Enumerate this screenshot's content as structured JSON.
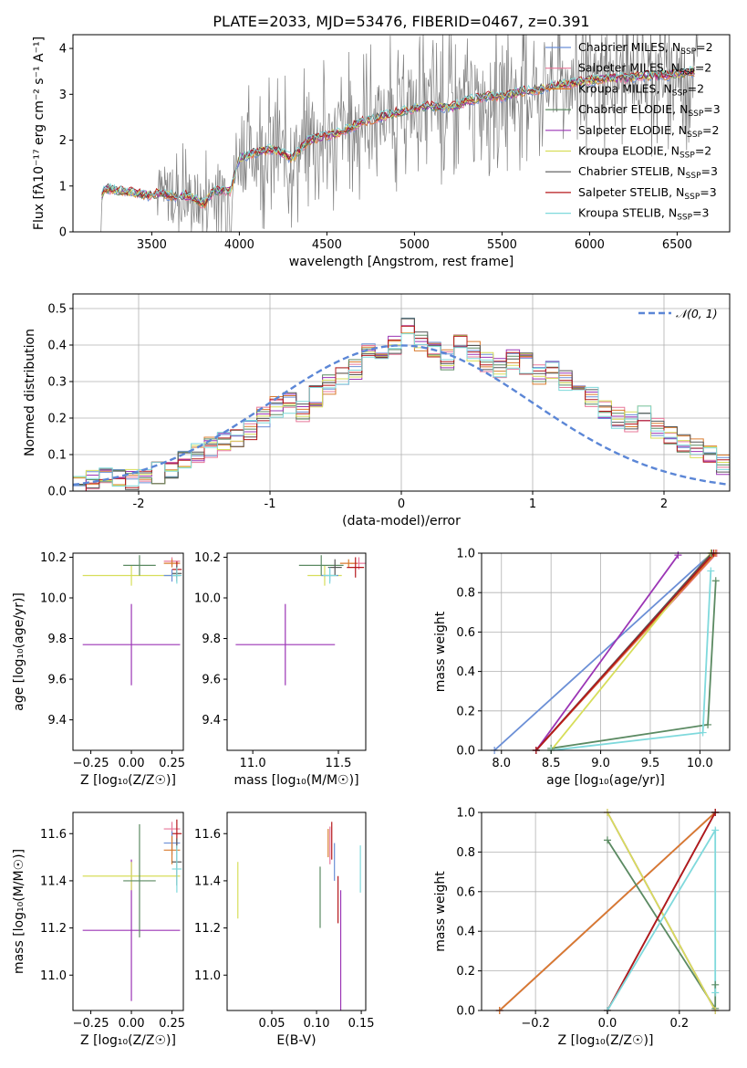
{
  "figure": {
    "title": "PLATE=2033, MJD=53476, FIBERID=0467, z=0.391"
  },
  "colors": {
    "Chabrier MILES": "#6b8fd6",
    "Salpeter MILES": "#e8789a",
    "Kroupa MILES": "#d97b2e",
    "Chabrier ELODIE": "#5b8a62",
    "Salpeter ELODIE": "#9b35b5",
    "Kroupa ELODIE": "#d7de5a",
    "Chabrier STELIB": "#555555",
    "Salpeter STELIB": "#b5181c",
    "Kroupa STELIB": "#7fd9dc",
    "data": "#7f7f7f",
    "normal": "#5b86d6"
  },
  "legend_spectrum": [
    {
      "label": "Chabrier MILES, N",
      "sub": "SSP",
      "suffix": "=2",
      "key": "Chabrier MILES"
    },
    {
      "label": "Salpeter MILES, N",
      "sub": "SSP",
      "suffix": "=2",
      "key": "Salpeter MILES"
    },
    {
      "label": "Kroupa MILES, N",
      "sub": "SSP",
      "suffix": "=2",
      "key": "Kroupa MILES"
    },
    {
      "label": "Chabrier ELODIE, N",
      "sub": "SSP",
      "suffix": "=3",
      "key": "Chabrier ELODIE"
    },
    {
      "label": "Salpeter ELODIE, N",
      "sub": "SSP",
      "suffix": "=2",
      "key": "Salpeter ELODIE"
    },
    {
      "label": "Kroupa ELODIE, N",
      "sub": "SSP",
      "suffix": "=2",
      "key": "Kroupa ELODIE"
    },
    {
      "label": "Chabrier STELIB, N",
      "sub": "SSP",
      "suffix": "=3",
      "key": "Chabrier STELIB"
    },
    {
      "label": "Salpeter STELIB, N",
      "sub": "SSP",
      "suffix": "=3",
      "key": "Salpeter STELIB"
    },
    {
      "label": "Kroupa STELIB, N",
      "sub": "SSP",
      "suffix": "=3",
      "key": "Kroupa STELIB"
    }
  ],
  "chart_data": [
    {
      "id": "spectrum",
      "type": "line",
      "xlabel": "wavelength [Angstrom, rest frame]",
      "ylabel": "Flux [fλ10⁻¹⁷ erg cm⁻² s⁻¹ A⁻¹]",
      "xlim": [
        3050,
        6800
      ],
      "ylim": [
        0,
        4.3
      ],
      "xticks": [
        3500,
        4000,
        4500,
        5000,
        5500,
        6000,
        6500
      ],
      "yticks": [
        0,
        1,
        2,
        3,
        4
      ],
      "model_continuum": [
        [
          3210,
          0.0
        ],
        [
          3215,
          0.8
        ],
        [
          3240,
          0.95
        ],
        [
          3300,
          0.9
        ],
        [
          3400,
          0.85
        ],
        [
          3480,
          0.8
        ],
        [
          3550,
          0.85
        ],
        [
          3650,
          0.75
        ],
        [
          3700,
          0.8
        ],
        [
          3800,
          0.6
        ],
        [
          3850,
          0.9
        ],
        [
          3950,
          0.9
        ],
        [
          4000,
          1.6
        ],
        [
          4100,
          1.75
        ],
        [
          4200,
          1.8
        ],
        [
          4300,
          1.6
        ],
        [
          4400,
          2.0
        ],
        [
          4500,
          2.1
        ],
        [
          4600,
          2.2
        ],
        [
          4700,
          2.4
        ],
        [
          4800,
          2.5
        ],
        [
          4900,
          2.6
        ],
        [
          5000,
          2.7
        ],
        [
          5100,
          2.75
        ],
        [
          5200,
          2.7
        ],
        [
          5300,
          2.85
        ],
        [
          5400,
          2.95
        ],
        [
          5500,
          2.95
        ],
        [
          5600,
          3.05
        ],
        [
          5700,
          3.1
        ],
        [
          5800,
          3.2
        ],
        [
          5900,
          3.25
        ],
        [
          6000,
          3.3
        ],
        [
          6100,
          3.35
        ],
        [
          6200,
          3.35
        ],
        [
          6300,
          3.4
        ],
        [
          6400,
          3.4
        ],
        [
          6500,
          3.45
        ],
        [
          6600,
          3.5
        ]
      ]
    },
    {
      "id": "residuals",
      "type": "line",
      "xlabel": "(data-model)/error",
      "ylabel": "Normed distribution",
      "xlim": [
        -2.5,
        2.5
      ],
      "ylim": [
        0,
        0.54
      ],
      "xticks": [
        -2,
        -1,
        0,
        1,
        2
      ],
      "yticks": [
        0.0,
        0.1,
        0.2,
        0.3,
        0.4,
        0.5
      ],
      "legend": "𝒩(0, 1)",
      "bin_edges": [
        -2.5,
        -2.4,
        -2.3,
        -2.2,
        -2.1,
        -2.0,
        -1.9,
        -1.8,
        -1.7,
        -1.6,
        -1.5,
        -1.4,
        -1.3,
        -1.2,
        -1.1,
        -1.0,
        -0.9,
        -0.8,
        -0.7,
        -0.6,
        -0.5,
        -0.4,
        -0.3,
        -0.2,
        -0.1,
        0.0,
        0.1,
        0.2,
        0.3,
        0.4,
        0.5,
        0.6,
        0.7,
        0.8,
        0.9,
        1.0,
        1.1,
        1.2,
        1.3,
        1.4,
        1.5,
        1.6,
        1.7,
        1.8,
        1.9,
        2.0,
        2.1,
        2.2,
        2.3,
        2.4,
        2.5
      ],
      "histogram": [
        0.02,
        0.03,
        0.05,
        0.04,
        0.03,
        0.03,
        0.05,
        0.06,
        0.08,
        0.1,
        0.12,
        0.14,
        0.15,
        0.17,
        0.2,
        0.23,
        0.24,
        0.22,
        0.26,
        0.29,
        0.31,
        0.33,
        0.38,
        0.36,
        0.4,
        0.45,
        0.41,
        0.38,
        0.36,
        0.42,
        0.38,
        0.35,
        0.34,
        0.36,
        0.35,
        0.32,
        0.33,
        0.3,
        0.27,
        0.26,
        0.22,
        0.2,
        0.19,
        0.21,
        0.17,
        0.15,
        0.13,
        0.12,
        0.1,
        0.07
      ]
    },
    {
      "id": "Z_age",
      "type": "scatter",
      "xlabel": "Z [log₁₀(Z/Z☉)]",
      "ylabel": "age  [log₁₀(age/yr)]",
      "xlim": [
        -0.36,
        0.32
      ],
      "ylim": [
        9.25,
        10.22
      ],
      "xticks": [
        -0.25,
        0.0,
        0.25
      ],
      "xticklabels": [
        "−0.25",
        "0.00",
        "0.25"
      ],
      "yticks": [
        9.4,
        9.6,
        9.8,
        10.0,
        10.2
      ],
      "points": [
        {
          "key": "Salpeter ELODIE",
          "x": 0.0,
          "xerr": 0.3,
          "y": 9.77,
          "yerr": 0.2
        },
        {
          "key": "Kroupa ELODIE",
          "x": 0.0,
          "xerr": 0.3,
          "y": 10.11,
          "yerr": 0.05
        },
        {
          "key": "Chabrier ELODIE",
          "x": 0.05,
          "xerr": 0.1,
          "y": 10.16,
          "yerr": 0.05
        },
        {
          "key": "Salpeter MILES",
          "x": 0.25,
          "xerr": 0.05,
          "y": 10.18,
          "yerr": 0.02
        },
        {
          "key": "Kroupa MILES",
          "x": 0.25,
          "xerr": 0.05,
          "y": 10.17,
          "yerr": 0.02
        },
        {
          "key": "Salpeter STELIB",
          "x": 0.28,
          "xerr": 0.03,
          "y": 10.14,
          "yerr": 0.04
        },
        {
          "key": "Chabrier STELIB",
          "x": 0.28,
          "xerr": 0.03,
          "y": 10.12,
          "yerr": 0.04
        },
        {
          "key": "Chabrier MILES",
          "x": 0.25,
          "xerr": 0.05,
          "y": 10.11,
          "yerr": 0.03
        },
        {
          "key": "Kroupa STELIB",
          "x": 0.28,
          "xerr": 0.03,
          "y": 10.11,
          "yerr": 0.04
        }
      ]
    },
    {
      "id": "mass_age",
      "type": "scatter",
      "xlabel": "mass [log₁₀(M/M☉)]",
      "ylabel": "",
      "xlim": [
        10.85,
        11.66
      ],
      "ylim": [
        9.25,
        10.22
      ],
      "xticks": [
        11.0,
        11.5
      ],
      "xticklabels": [
        "11.0",
        "11.5"
      ],
      "yticks": [
        9.4,
        9.6,
        9.8,
        10.0,
        10.2
      ],
      "points": [
        {
          "key": "Salpeter ELODIE",
          "x": 11.19,
          "xerr": 0.29,
          "y": 9.77,
          "yerr": 0.2
        },
        {
          "key": "Kroupa ELODIE",
          "x": 11.42,
          "xerr": 0.1,
          "y": 10.11,
          "yerr": 0.05
        },
        {
          "key": "Chabrier ELODIE",
          "x": 11.4,
          "xerr": 0.13,
          "y": 10.16,
          "yerr": 0.05
        },
        {
          "key": "Salpeter MILES",
          "x": 11.62,
          "xerr": 0.05,
          "y": 10.17,
          "yerr": 0.03
        },
        {
          "key": "Kroupa MILES",
          "x": 11.56,
          "xerr": 0.05,
          "y": 10.17,
          "yerr": 0.02
        },
        {
          "key": "Salpeter STELIB",
          "x": 11.6,
          "xerr": 0.05,
          "y": 10.15,
          "yerr": 0.05
        },
        {
          "key": "Chabrier STELIB",
          "x": 11.48,
          "xerr": 0.04,
          "y": 10.15,
          "yerr": 0.04
        },
        {
          "key": "Chabrier MILES",
          "x": 11.45,
          "xerr": 0.05,
          "y": 10.11,
          "yerr": 0.03
        },
        {
          "key": "Kroupa STELIB",
          "x": 11.45,
          "xerr": 0.04,
          "y": 10.11,
          "yerr": 0.04
        }
      ]
    },
    {
      "id": "age_weight",
      "type": "line",
      "xlabel": "age  [log₁₀(age/yr)]",
      "ylabel": "mass weight",
      "xlim": [
        7.8,
        10.3
      ],
      "ylim": [
        0,
        1
      ],
      "xticks": [
        8.0,
        8.5,
        9.0,
        9.5,
        10.0
      ],
      "yticks": [
        0.0,
        0.2,
        0.4,
        0.6,
        0.8,
        1.0
      ],
      "series": [
        {
          "key": "Chabrier MILES",
          "x": [
            7.93,
            10.12
          ],
          "y": [
            0.0,
            1.0
          ]
        },
        {
          "key": "Salpeter MILES",
          "x": [
            8.35,
            10.17
          ],
          "y": [
            0.0,
            1.0
          ]
        },
        {
          "key": "Kroupa MILES",
          "x": [
            8.35,
            10.16
          ],
          "y": [
            0.0,
            1.0
          ]
        },
        {
          "key": "Chabrier ELODIE",
          "x": [
            8.5,
            10.08,
            10.16
          ],
          "y": [
            0.01,
            0.13,
            0.86
          ]
        },
        {
          "key": "Salpeter ELODIE",
          "x": [
            8.35,
            9.78
          ],
          "y": [
            0.0,
            0.99
          ]
        },
        {
          "key": "Kroupa ELODIE",
          "x": [
            8.5,
            10.11
          ],
          "y": [
            0.0,
            1.0
          ]
        },
        {
          "key": "Chabrier STELIB",
          "x": [
            8.35,
            10.12
          ],
          "y": [
            0.0,
            1.0
          ]
        },
        {
          "key": "Salpeter STELIB",
          "x": [
            8.35,
            10.14
          ],
          "y": [
            0.0,
            1.0
          ]
        },
        {
          "key": "Kroupa STELIB",
          "x": [
            8.5,
            10.03,
            10.11
          ],
          "y": [
            0.0,
            0.09,
            0.91
          ]
        }
      ]
    },
    {
      "id": "Z_mass",
      "type": "scatter",
      "xlabel": "Z [log₁₀(Z/Z☉)]",
      "ylabel": "mass [log₁₀(M/M☉)]",
      "xlim": [
        -0.36,
        0.32
      ],
      "ylim": [
        10.85,
        11.69
      ],
      "xticks": [
        -0.25,
        0.0,
        0.25
      ],
      "xticklabels": [
        "−0.25",
        "0.00",
        "0.25"
      ],
      "yticks": [
        11.0,
        11.2,
        11.4,
        11.6
      ],
      "points": [
        {
          "key": "Salpeter ELODIE",
          "x": 0.0,
          "xerr": 0.3,
          "y": 11.19,
          "yerr": 0.3
        },
        {
          "key": "Kroupa ELODIE",
          "x": 0.0,
          "xerr": 0.3,
          "y": 11.42,
          "yerr": 0.06
        },
        {
          "key": "Chabrier ELODIE",
          "x": 0.05,
          "xerr": 0.1,
          "y": 11.4,
          "yerr": 0.24
        },
        {
          "key": "Salpeter MILES",
          "x": 0.25,
          "xerr": 0.05,
          "y": 11.62,
          "yerr": 0.03
        },
        {
          "key": "Salpeter STELIB",
          "x": 0.28,
          "xerr": 0.03,
          "y": 11.6,
          "yerr": 0.06
        },
        {
          "key": "Chabrier MILES",
          "x": 0.25,
          "xerr": 0.05,
          "y": 11.56,
          "yerr": 0.05
        },
        {
          "key": "Kroupa MILES",
          "x": 0.25,
          "xerr": 0.05,
          "y": 11.53,
          "yerr": 0.06
        },
        {
          "key": "Chabrier STELIB",
          "x": 0.28,
          "xerr": 0.03,
          "y": 11.48,
          "yerr": 0.1
        },
        {
          "key": "Kroupa STELIB",
          "x": 0.28,
          "xerr": 0.03,
          "y": 11.45,
          "yerr": 0.1
        }
      ]
    },
    {
      "id": "ebv_mass",
      "type": "scatter",
      "xlabel": "E(B-V)",
      "ylabel": "",
      "xlim": [
        0.0,
        0.155
      ],
      "ylim": [
        10.85,
        11.69
      ],
      "xticks": [
        0.05,
        0.1,
        0.15
      ],
      "xticklabels": [
        "0.05",
        "0.10",
        "0.15"
      ],
      "yticks": [
        11.0,
        11.2,
        11.4,
        11.6
      ],
      "points": [
        {
          "key": "Kroupa ELODIE",
          "x": 0.012,
          "y": 11.36,
          "yerr": 0.12
        },
        {
          "key": "Chabrier ELODIE",
          "x": 0.104,
          "y": 11.33,
          "yerr": 0.13
        },
        {
          "key": "Kroupa MILES",
          "x": 0.113,
          "y": 11.56,
          "yerr": 0.06
        },
        {
          "key": "Salpeter MILES",
          "x": 0.115,
          "y": 11.55,
          "yerr": 0.08
        },
        {
          "key": "Salpeter STELIB",
          "x": 0.117,
          "y": 11.57,
          "yerr": 0.08
        },
        {
          "key": "Chabrier MILES",
          "x": 0.12,
          "y": 11.48,
          "yerr": 0.08
        },
        {
          "key": "Salpeter STELIB",
          "x": 0.124,
          "y": 11.32,
          "yerr": 0.1
        },
        {
          "key": "Salpeter ELODIE",
          "x": 0.127,
          "y": 11.0,
          "yerr": 0.36
        },
        {
          "key": "Kroupa STELIB",
          "x": 0.149,
          "y": 11.45,
          "yerr": 0.1
        }
      ]
    },
    {
      "id": "Z_weight",
      "type": "line",
      "xlabel": "Z [log₁₀(Z/Z☉)]",
      "ylabel": "mass weight",
      "xlim": [
        -0.35,
        0.34
      ],
      "ylim": [
        0,
        1
      ],
      "xticks": [
        -0.2,
        0.0,
        0.2
      ],
      "xticklabels": [
        "−0.2",
        "0.0",
        "0.2"
      ],
      "yticks": [
        0.0,
        0.2,
        0.4,
        0.6,
        0.8,
        1.0
      ],
      "series": [
        {
          "key": "Chabrier MILES",
          "x": [
            -0.3,
            0.3
          ],
          "y": [
            0.0,
            1.0
          ]
        },
        {
          "key": "Salpeter MILES",
          "x": [
            -0.3,
            0.3
          ],
          "y": [
            0.0,
            1.0
          ]
        },
        {
          "key": "Kroupa MILES",
          "x": [
            -0.3,
            0.3
          ],
          "y": [
            0.0,
            1.0
          ]
        },
        {
          "key": "Chabrier ELODIE",
          "x": [
            0.0,
            0.3,
            0.3
          ],
          "y": [
            0.86,
            0.01,
            0.13
          ]
        },
        {
          "key": "Salpeter ELODIE",
          "x": [
            0.0,
            0.3
          ],
          "y": [
            1.0,
            0.0
          ]
        },
        {
          "key": "Kroupa ELODIE",
          "x": [
            0.0,
            0.3
          ],
          "y": [
            1.0,
            0.0
          ]
        },
        {
          "key": "Chabrier STELIB",
          "x": [
            0.0,
            0.3
          ],
          "y": [
            0.0,
            1.0
          ]
        },
        {
          "key": "Salpeter STELIB",
          "x": [
            0.0,
            0.3
          ],
          "y": [
            0.0,
            1.0
          ]
        },
        {
          "key": "Kroupa STELIB",
          "x": [
            0.0,
            0.3,
            0.3
          ],
          "y": [
            0.0,
            0.91,
            0.09
          ]
        }
      ]
    }
  ]
}
